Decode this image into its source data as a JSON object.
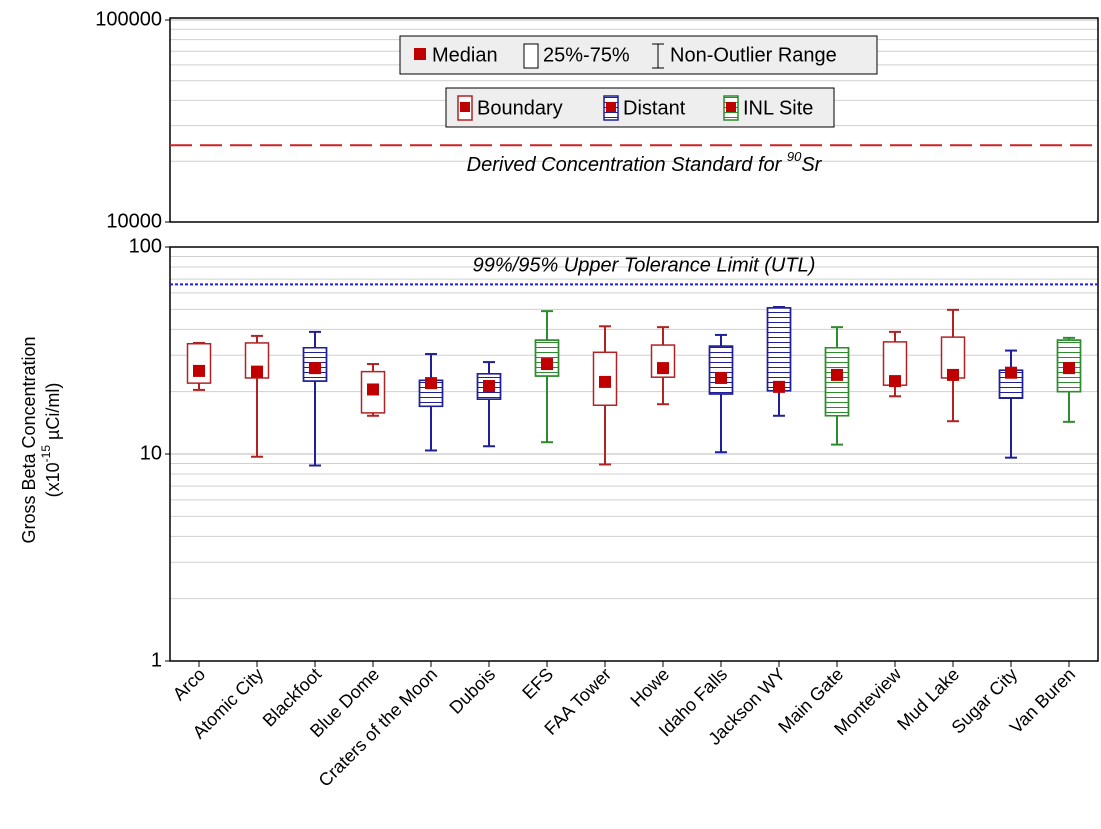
{
  "chart_data": {
    "type": "box",
    "y_label": [
      "Gross Beta Concentration",
      "(x10",
      "-15",
      " µCi/ml)"
    ],
    "categories": [
      "Arco",
      "Atomic City",
      "Blackfoot",
      "Blue Dome",
      "Craters of the Moon",
      "Dubois",
      "EFS",
      "FAA Tower",
      "Howe",
      "Idaho Falls",
      "Jackson WY",
      "Main Gate",
      "Monteview",
      "Mud Lake",
      "Sugar City",
      "Van Buren"
    ],
    "log_scale": true,
    "grid": true,
    "ylim": [
      1,
      100
    ],
    "yticks": [
      1,
      10,
      100
    ],
    "minor_yticks": [
      2,
      3,
      4,
      5,
      6,
      7,
      8,
      9,
      20,
      30,
      40,
      50,
      60,
      70,
      80,
      90
    ],
    "upper_ylim": [
      10000,
      100000
    ],
    "upper_yticks": [
      10000,
      100000
    ],
    "upper_minor_yticks": [
      20000,
      30000,
      40000,
      50000,
      60000,
      70000,
      80000,
      90000
    ],
    "legend_stats": [
      "Median",
      "25%-75%",
      "Non-Outlier Range"
    ],
    "median_color": "#c00000",
    "series": [
      {
        "name": "Boundary",
        "color": "#b22222",
        "hatch": false,
        "min": [
          20.4,
          9.7,
          null,
          15.3,
          null,
          null,
          null,
          8.9,
          17.4,
          null,
          null,
          null,
          19.0,
          14.4,
          null,
          null
        ],
        "q1": [
          22.0,
          23.3,
          null,
          15.8,
          null,
          null,
          null,
          17.2,
          23.5,
          null,
          null,
          null,
          21.5,
          23.3,
          null,
          null
        ],
        "median": [
          25.2,
          25.0,
          null,
          20.5,
          null,
          null,
          null,
          22.3,
          26.0,
          null,
          null,
          null,
          22.5,
          24.1,
          null,
          null
        ],
        "q3": [
          34.1,
          34.4,
          null,
          25.0,
          null,
          null,
          null,
          31.0,
          33.6,
          null,
          null,
          null,
          34.8,
          36.7,
          null,
          null
        ],
        "max": [
          34.4,
          37.2,
          null,
          27.2,
          null,
          null,
          null,
          41.4,
          41.0,
          null,
          null,
          null,
          38.9,
          49.7,
          null,
          null
        ]
      },
      {
        "name": "Distant",
        "color": "#1f1f9a",
        "hatch": true,
        "min": [
          null,
          null,
          8.8,
          null,
          10.4,
          10.9,
          null,
          null,
          null,
          10.2,
          15.3,
          null,
          null,
          null,
          9.6,
          null
        ],
        "q1": [
          null,
          null,
          22.5,
          null,
          17.0,
          18.4,
          null,
          null,
          null,
          19.5,
          20.2,
          null,
          null,
          null,
          18.6,
          null
        ],
        "median": [
          null,
          null,
          26.0,
          null,
          22.0,
          21.3,
          null,
          null,
          null,
          23.3,
          21.1,
          null,
          null,
          null,
          24.7,
          null
        ],
        "q3": [
          null,
          null,
          32.6,
          null,
          22.7,
          24.4,
          null,
          null,
          null,
          33.2,
          50.8,
          null,
          null,
          null,
          25.4,
          null
        ],
        "max": [
          null,
          null,
          38.9,
          null,
          30.4,
          27.8,
          null,
          null,
          null,
          37.6,
          51.3,
          null,
          null,
          null,
          31.6,
          null
        ]
      },
      {
        "name": "INL Site",
        "color": "#2e8b2e",
        "hatch": true,
        "min": [
          null,
          null,
          null,
          null,
          null,
          null,
          11.4,
          null,
          null,
          null,
          null,
          11.1,
          null,
          null,
          null,
          14.3
        ],
        "q1": [
          null,
          null,
          null,
          null,
          null,
          null,
          23.8,
          null,
          null,
          null,
          null,
          15.3,
          null,
          null,
          null,
          20.0
        ],
        "median": [
          null,
          null,
          null,
          null,
          null,
          null,
          27.2,
          null,
          null,
          null,
          null,
          24.1,
          null,
          null,
          null,
          26.0
        ],
        "q3": [
          null,
          null,
          null,
          null,
          null,
          null,
          35.5,
          null,
          null,
          null,
          null,
          32.6,
          null,
          null,
          null,
          35.5
        ],
        "max": [
          null,
          null,
          null,
          null,
          null,
          null,
          49.0,
          null,
          null,
          null,
          null,
          41.0,
          null,
          null,
          null,
          36.4
        ]
      }
    ],
    "reference_lines": [
      {
        "label": [
          "Derived Concentration Standard for ",
          "90",
          "Sr"
        ],
        "value": 24000,
        "color": "#cc2222",
        "panel": "upper"
      },
      {
        "label": [
          "99%/95% Upper Tolerance Limit (UTL)"
        ],
        "value": 66,
        "color": "#2020dd",
        "panel": "lower"
      }
    ]
  }
}
